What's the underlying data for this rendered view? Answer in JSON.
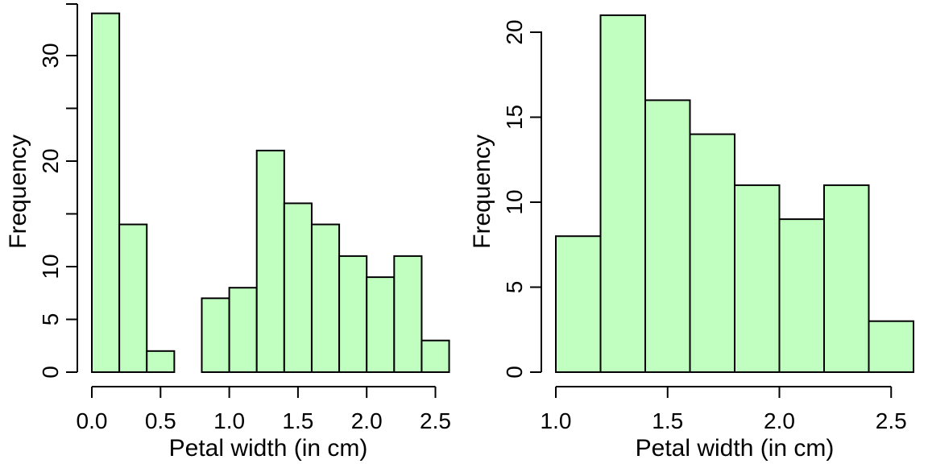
{
  "chart_data": [
    {
      "type": "bar",
      "title": "",
      "xlabel": "Petal width (in cm)",
      "ylabel": "Frequency",
      "bin_edges": [
        0.0,
        0.2,
        0.4,
        0.6,
        0.8,
        1.0,
        1.2,
        1.4,
        1.6,
        1.8,
        2.0,
        2.2,
        2.4,
        2.6
      ],
      "values": [
        34,
        14,
        2,
        0,
        7,
        8,
        21,
        16,
        14,
        11,
        9,
        11,
        3
      ],
      "xlim": [
        0.0,
        2.5
      ],
      "ylim": [
        0,
        30
      ],
      "x_ticks": [
        "0.0",
        "0.5",
        "1.0",
        "1.5",
        "2.0",
        "2.5"
      ],
      "y_ticks": [
        "0",
        "5",
        "10",
        "20",
        "30"
      ],
      "bar_color": "#c1ffc1",
      "grid": false
    },
    {
      "type": "bar",
      "title": "",
      "xlabel": "Petal width (in cm)",
      "ylabel": "Frequency",
      "bin_edges": [
        1.0,
        1.2,
        1.4,
        1.6,
        1.8,
        2.0,
        2.2,
        2.4,
        2.6
      ],
      "values": [
        8,
        21,
        16,
        14,
        11,
        9,
        11,
        3
      ],
      "xlim": [
        1.0,
        2.5
      ],
      "ylim": [
        0,
        20
      ],
      "x_ticks": [
        "1.0",
        "1.5",
        "2.0",
        "2.5"
      ],
      "y_ticks": [
        "0",
        "5",
        "10",
        "15",
        "20"
      ],
      "bar_color": "#c1ffc1",
      "grid": false
    }
  ]
}
